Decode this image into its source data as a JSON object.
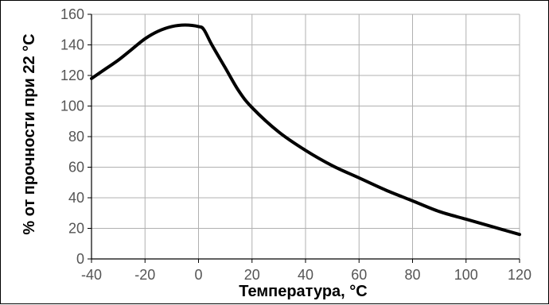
{
  "chart_data": {
    "type": "line",
    "title": "",
    "xlabel": "Температура, °C",
    "ylabel": "% от прочности при 22 °C",
    "xlim": [
      -40,
      120
    ],
    "ylim": [
      0,
      160
    ],
    "x_ticks": [
      -40,
      -20,
      0,
      20,
      40,
      60,
      80,
      100,
      120
    ],
    "y_ticks": [
      0,
      20,
      40,
      60,
      80,
      100,
      120,
      140,
      160
    ],
    "grid": true,
    "legend": "none",
    "line_color": "#000000",
    "grid_color": "#b0b0b0",
    "series": [
      {
        "x": [
          -40,
          -35,
          -30,
          -25,
          -20,
          -15,
          -10,
          -5,
          0,
          2,
          5,
          10,
          15,
          20,
          30,
          40,
          50,
          60,
          70,
          80,
          90,
          100,
          110,
          120
        ],
        "y": [
          118,
          124,
          130,
          137,
          144,
          149,
          152,
          153,
          152,
          150,
          140,
          125,
          110,
          99,
          83,
          71,
          61,
          53,
          45,
          38,
          31,
          26,
          21,
          16
        ]
      }
    ]
  }
}
